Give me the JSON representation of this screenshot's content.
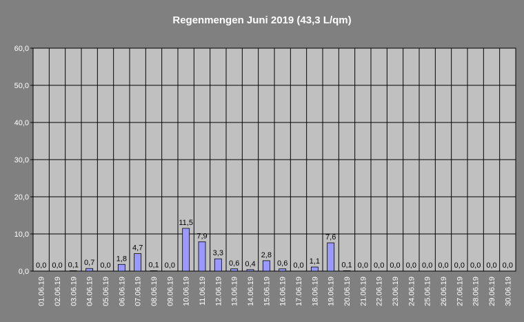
{
  "chart_data": {
    "type": "bar",
    "title": "Regenmengen Juni 2019 (43,3 L/qm)",
    "categories": [
      "01.06.19",
      "02.06.19",
      "03.06.19",
      "04.06.19",
      "05.06.19",
      "06.06.19",
      "07.06.19",
      "08.06.19",
      "09.06.19",
      "10.06.19",
      "11.06.19",
      "12.06.19",
      "13.06.19",
      "14.06.19",
      "15.06.19",
      "16.06.19",
      "17.06.19",
      "18.06.19",
      "19.06.19",
      "20.06.19",
      "21.06.19",
      "22.06.19",
      "23.06.19",
      "24.06.19",
      "25.06.19",
      "26.06.19",
      "27.06.19",
      "28.06.19",
      "29.06.19",
      "30.06.19"
    ],
    "values": [
      0,
      0,
      0.1,
      0.7,
      0,
      1.8,
      4.7,
      0.1,
      0,
      11.5,
      7.9,
      3.3,
      0.6,
      0.4,
      2.8,
      0.6,
      0,
      1.1,
      7.6,
      0.1,
      0,
      0,
      0,
      0,
      0,
      0,
      0,
      0,
      0,
      0
    ],
    "value_labels": [
      "0,0",
      "0,0",
      "0,1",
      "0,7",
      "0,0",
      "1,8",
      "4,7",
      "0,1",
      "0,0",
      "11,5",
      "7,9",
      "3,3",
      "0,6",
      "0,4",
      "2,8",
      "0,6",
      "0,0",
      "1,1",
      "7,6",
      "0,1",
      "0,0",
      "0,0",
      "0,0",
      "0,0",
      "0,0",
      "0,0",
      "0,0",
      "0,0",
      "0,0",
      "0,0"
    ],
    "color": "#9999ff",
    "ylim": [
      0,
      60
    ],
    "yticks": [
      {
        "value": 0,
        "label": "0,0"
      },
      {
        "value": 10,
        "label": "10,0"
      },
      {
        "value": 20,
        "label": "20,0"
      },
      {
        "value": 30,
        "label": "30,0"
      },
      {
        "value": 40,
        "label": "40,0"
      },
      {
        "value": 50,
        "label": "50,0"
      },
      {
        "value": 60,
        "label": "60,0"
      }
    ],
    "grid": true
  }
}
